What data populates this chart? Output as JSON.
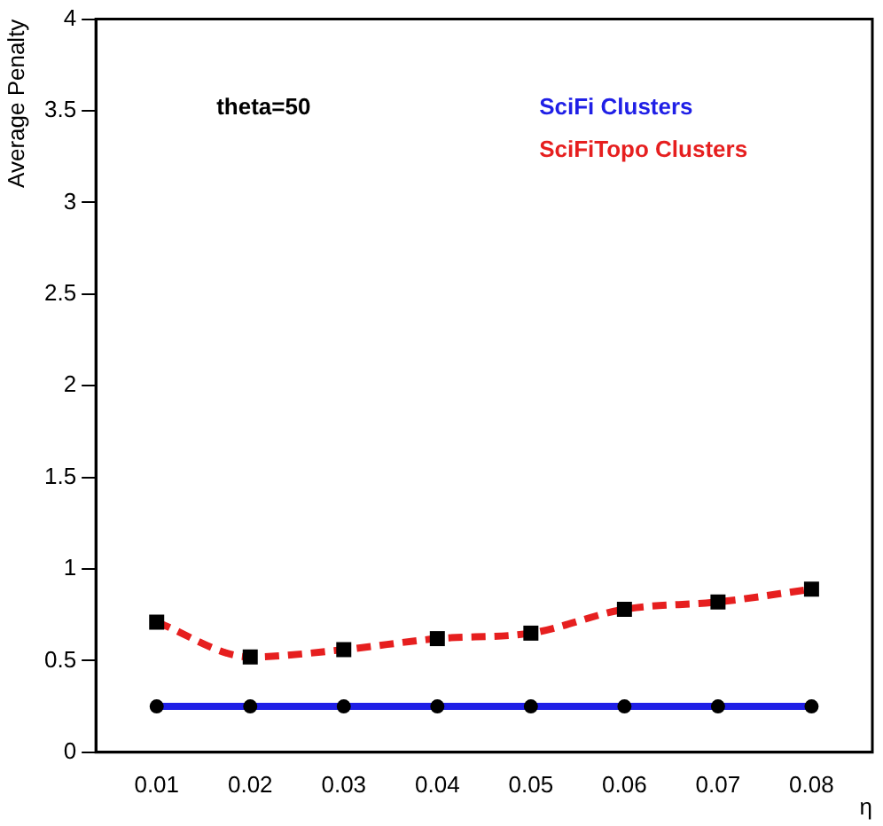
{
  "chart_data": {
    "type": "line",
    "ylabel": "Average Penalty",
    "xlabel": "η",
    "annotations": [
      "theta=50"
    ],
    "x": [
      0.01,
      0.02,
      0.03,
      0.04,
      0.05,
      0.06,
      0.07,
      0.08
    ],
    "series": [
      {
        "name": "SciFi Clusters",
        "color": "#1f1fe6",
        "values": [
          0.25,
          0.25,
          0.25,
          0.25,
          0.25,
          0.25,
          0.25,
          0.25
        ],
        "marker": "circle",
        "line_style": "solid"
      },
      {
        "name": "SciFiTopo Clusters",
        "color": "#e61f1f",
        "values": [
          0.71,
          0.52,
          0.56,
          0.62,
          0.65,
          0.78,
          0.82,
          0.89
        ],
        "marker": "square",
        "line_style": "dashed"
      }
    ],
    "xlim": [
      0.0035,
      0.0865
    ],
    "xticks": [
      0.01,
      0.02,
      0.03,
      0.04,
      0.05,
      0.06,
      0.07,
      0.08
    ],
    "ylim": [
      0,
      4
    ],
    "yticks": [
      0,
      0.5,
      1,
      1.5,
      2,
      2.5,
      3,
      3.5,
      4
    ],
    "grid": false,
    "legend": "top right"
  }
}
